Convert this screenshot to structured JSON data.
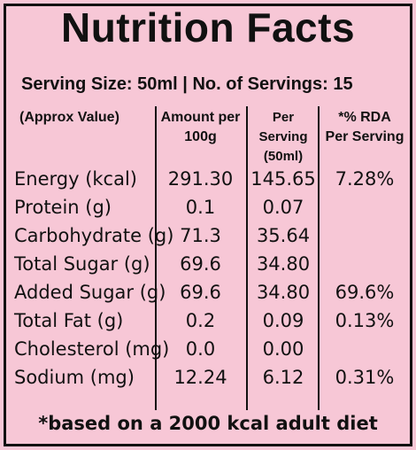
{
  "title": "Nutrition Facts",
  "serving_line": "Serving Size: 50ml  |  No. of Servings: 15",
  "headers": {
    "col1": "(Approx Value)",
    "col2_line1": "Amount per",
    "col2_line2": "100g",
    "col3_line1": "Per Serving",
    "col3_line2": "(50ml)",
    "col4_line1": "*% RDA",
    "col4_line2": "Per Serving"
  },
  "rows": [
    {
      "name": "Energy (kcal)",
      "amount": "291.30",
      "per_serving": "145.65",
      "rda": "7.28%"
    },
    {
      "name": "Protein (g)",
      "amount": "0.1",
      "per_serving": "0.07",
      "rda": ""
    },
    {
      "name": "Carbohydrate (g)",
      "amount": "71.3",
      "per_serving": "35.64",
      "rda": ""
    },
    {
      "name": "Total Sugar (g)",
      "amount": "69.6",
      "per_serving": "34.80",
      "rda": ""
    },
    {
      "name": "Added Sugar (g)",
      "amount": "69.6",
      "per_serving": "34.80",
      "rda": "69.6%"
    },
    {
      "name": "Total Fat (g)",
      "amount": "0.2",
      "per_serving": "0.09",
      "rda": "0.13%"
    },
    {
      "name": "Cholesterol (mg)",
      "amount": "0.0",
      "per_serving": "0.00",
      "rda": ""
    },
    {
      "name": "Sodium (mg)",
      "amount": "12.24",
      "per_serving": "6.12",
      "rda": "0.31%"
    }
  ],
  "footer": "*based on a 2000 kcal adult diet",
  "colors": {
    "background": "#f7c7d6",
    "text": "#111111"
  }
}
